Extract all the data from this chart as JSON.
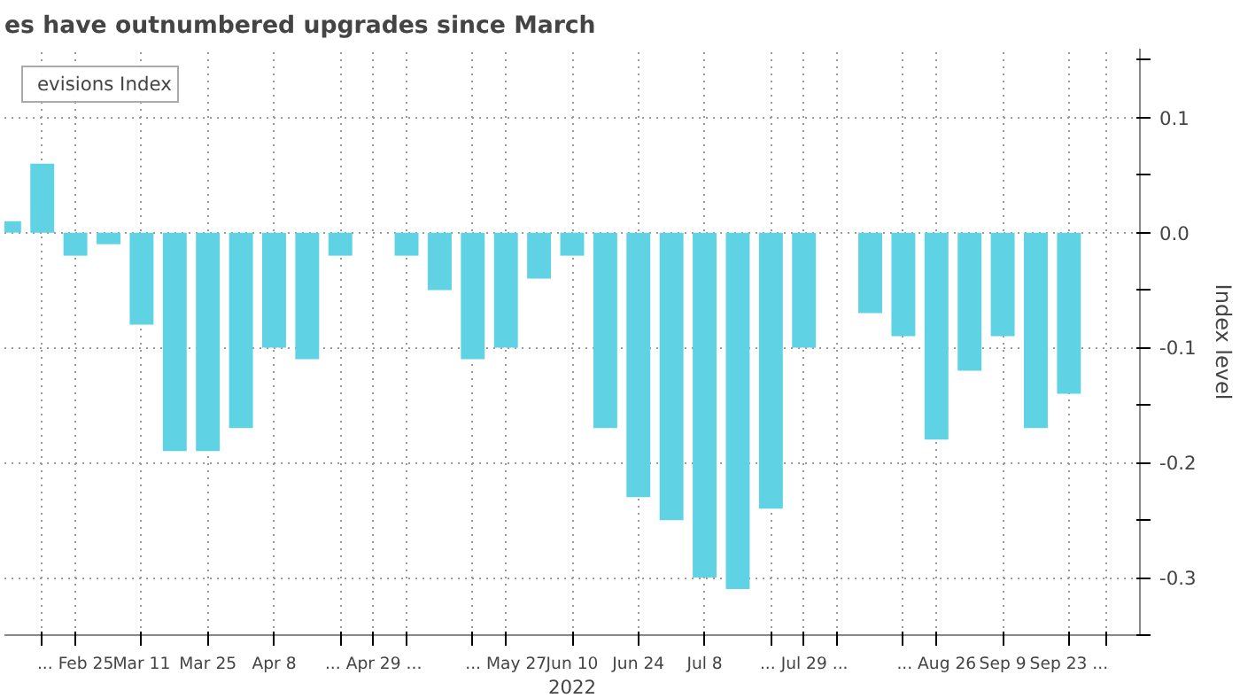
{
  "chart_data": {
    "type": "bar",
    "title": "es have outnumbered upgrades since March",
    "xlabel": "2022",
    "ylabel": "Index level",
    "x": [
      "2022-02-11",
      "2022-02-18",
      "2022-02-25",
      "2022-03-04",
      "2022-03-11",
      "2022-03-18",
      "2022-03-25",
      "2022-04-01",
      "2022-04-08",
      "2022-04-15",
      "2022-04-22",
      "2022-04-29",
      "2022-05-06",
      "2022-05-13",
      "2022-05-20",
      "2022-05-27",
      "2022-06-03",
      "2022-06-10",
      "2022-06-17",
      "2022-06-24",
      "2022-07-01",
      "2022-07-08",
      "2022-07-15",
      "2022-07-22",
      "2022-07-29",
      "2022-08-05",
      "2022-08-12",
      "2022-08-19",
      "2022-08-26",
      "2022-09-02",
      "2022-09-09",
      "2022-09-16",
      "2022-09-23"
    ],
    "series": [
      {
        "name": "evisions Index",
        "color": "#5fd3e3",
        "values": [
          0.01,
          0.06,
          -0.02,
          -0.01,
          -0.08,
          -0.19,
          -0.19,
          -0.17,
          -0.1,
          -0.11,
          -0.02,
          0.0,
          -0.02,
          -0.05,
          -0.11,
          -0.1,
          -0.04,
          -0.02,
          -0.17,
          -0.23,
          -0.25,
          -0.3,
          -0.31,
          -0.24,
          -0.1,
          0.0,
          -0.07,
          -0.09,
          -0.18,
          -0.12,
          -0.09,
          -0.17,
          -0.14
        ]
      }
    ],
    "xlim": [
      "2022-02-10",
      "2022-10-08"
    ],
    "xticks": [
      {
        "value": "2022-02-18",
        "label": null
      },
      {
        "value": "2022-02-25",
        "label": "... Feb 25"
      },
      {
        "value": "2022-03-11",
        "label": "Mar 11"
      },
      {
        "value": "2022-03-25",
        "label": "Mar 25"
      },
      {
        "value": "2022-04-08",
        "label": "Apr 8"
      },
      {
        "value": "2022-04-22",
        "label": null
      },
      {
        "value": "2022-04-29",
        "label": "... Apr 29 ..."
      },
      {
        "value": "2022-05-06",
        "label": null
      },
      {
        "value": "2022-05-20",
        "label": null
      },
      {
        "value": "2022-05-27",
        "label": "... May 27"
      },
      {
        "value": "2022-06-10",
        "label": "Jun 10"
      },
      {
        "value": "2022-06-24",
        "label": "Jun 24"
      },
      {
        "value": "2022-07-08",
        "label": "Jul 8"
      },
      {
        "value": "2022-07-22",
        "label": null
      },
      {
        "value": "2022-07-29",
        "label": "... Jul 29 ..."
      },
      {
        "value": "2022-08-05",
        "label": null
      },
      {
        "value": "2022-08-19",
        "label": null
      },
      {
        "value": "2022-08-26",
        "label": "... Aug 26"
      },
      {
        "value": "2022-09-09",
        "label": "Sep 9"
      },
      {
        "value": "2022-09-23",
        "label": "Sep 23 ..."
      },
      {
        "value": "2022-10-01",
        "label": null
      }
    ],
    "ylim": [
      -0.35,
      0.16
    ],
    "yticks": [
      {
        "value": -0.35,
        "label": null
      },
      -0.3,
      {
        "value": -0.25,
        "label": null
      },
      -0.2,
      {
        "value": -0.15,
        "label": null
      },
      -0.1,
      {
        "value": -0.05,
        "label": null
      },
      {
        "value": 0,
        "label": "0.0"
      },
      {
        "value": 0.05,
        "label": null
      },
      0.1,
      {
        "value": 0.15,
        "label": null
      }
    ],
    "grid": true,
    "legend": "top left"
  }
}
